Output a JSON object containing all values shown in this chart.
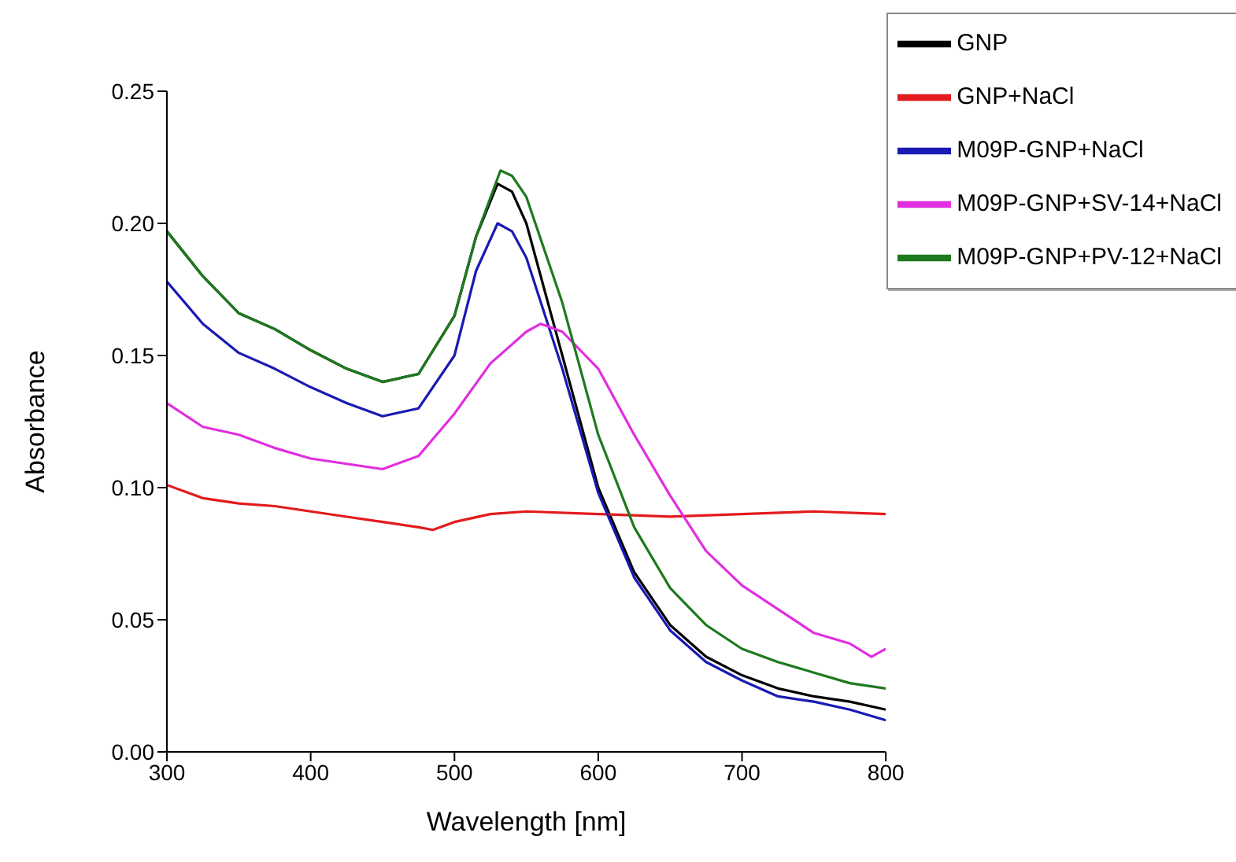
{
  "chart_data": {
    "type": "line",
    "xlabel": "Wavelength [nm]",
    "ylabel": "Absorbance",
    "xlim": [
      300,
      800
    ],
    "xticks": [
      300,
      400,
      500,
      600,
      700,
      800
    ],
    "ylim": [
      0,
      0.25
    ],
    "yticks": [
      {
        "value": 0,
        "label": "0.00"
      },
      {
        "value": 0.05,
        "label": "0.05"
      },
      {
        "value": 0.1,
        "label": "0.10"
      },
      {
        "value": 0.15,
        "label": "0.15"
      },
      {
        "value": 0.2,
        "label": "0.20"
      },
      {
        "value": 0.25,
        "label": "0.25"
      }
    ],
    "grid": false,
    "legend": "top right",
    "marker": "none",
    "line_style": "solid",
    "series": [
      {
        "name": "GNP",
        "color": "#000000",
        "x": [
          300,
          325,
          350,
          375,
          400,
          425,
          450,
          475,
          500,
          515,
          530,
          540,
          550,
          575,
          600,
          625,
          650,
          675,
          700,
          725,
          750,
          775,
          800
        ],
        "values": [
          0.197,
          0.18,
          0.166,
          0.16,
          0.152,
          0.145,
          0.14,
          0.143,
          0.165,
          0.195,
          0.215,
          0.212,
          0.2,
          0.15,
          0.1,
          0.068,
          0.048,
          0.036,
          0.029,
          0.024,
          0.021,
          0.019,
          0.016
        ]
      },
      {
        "name": "GNP+NaCl",
        "color": "#e31a1c",
        "x": [
          300,
          325,
          350,
          375,
          400,
          425,
          450,
          475,
          485,
          500,
          525,
          550,
          600,
          650,
          700,
          750,
          800
        ],
        "values": [
          0.101,
          0.096,
          0.094,
          0.093,
          0.091,
          0.089,
          0.087,
          0.085,
          0.084,
          0.087,
          0.09,
          0.091,
          0.09,
          0.089,
          0.09,
          0.091,
          0.09
        ]
      },
      {
        "name": "M09P-GNP+NaCl",
        "color": "#1a1ab4",
        "x": [
          300,
          325,
          350,
          375,
          400,
          425,
          450,
          475,
          500,
          515,
          530,
          540,
          550,
          575,
          600,
          625,
          650,
          675,
          700,
          725,
          750,
          775,
          800
        ],
        "values": [
          0.178,
          0.162,
          0.151,
          0.145,
          0.138,
          0.132,
          0.127,
          0.13,
          0.15,
          0.182,
          0.2,
          0.197,
          0.187,
          0.145,
          0.098,
          0.066,
          0.046,
          0.034,
          0.027,
          0.021,
          0.019,
          0.016,
          0.012
        ]
      },
      {
        "name": "M09P-GNP+SV-14+NaCl",
        "color": "#e02ee0",
        "x": [
          300,
          325,
          350,
          375,
          400,
          425,
          450,
          475,
          500,
          525,
          550,
          560,
          575,
          600,
          625,
          650,
          675,
          700,
          725,
          750,
          775,
          790,
          800
        ],
        "values": [
          0.132,
          0.123,
          0.12,
          0.115,
          0.111,
          0.109,
          0.107,
          0.112,
          0.128,
          0.147,
          0.159,
          0.162,
          0.159,
          0.145,
          0.12,
          0.097,
          0.076,
          0.063,
          0.054,
          0.045,
          0.041,
          0.036,
          0.039
        ]
      },
      {
        "name": "M09P-GNP+PV-12+NaCl",
        "color": "#1e7a1e",
        "x": [
          300,
          325,
          350,
          375,
          400,
          425,
          450,
          475,
          500,
          515,
          532,
          540,
          550,
          575,
          600,
          625,
          650,
          675,
          700,
          725,
          750,
          775,
          800
        ],
        "values": [
          0.197,
          0.18,
          0.166,
          0.16,
          0.152,
          0.145,
          0.14,
          0.143,
          0.165,
          0.195,
          0.22,
          0.218,
          0.21,
          0.17,
          0.12,
          0.085,
          0.062,
          0.048,
          0.039,
          0.034,
          0.03,
          0.026,
          0.024
        ]
      }
    ]
  }
}
